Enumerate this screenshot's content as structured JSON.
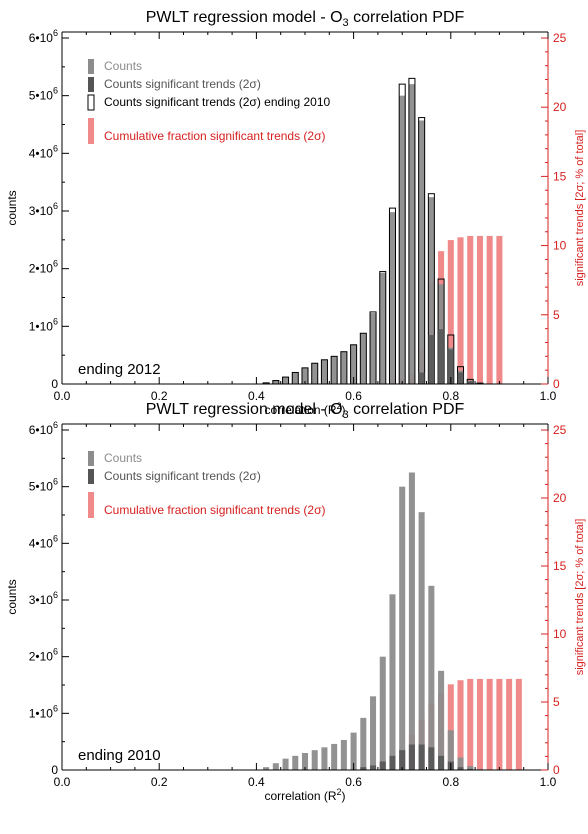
{
  "colors": {
    "counts": "#8c8c8c",
    "significant": "#555555",
    "cumulative": "#f08a8a",
    "right_axis": "#d62020",
    "ending_outline": "#000000"
  },
  "chart_data": [
    {
      "type": "bar",
      "title": "PWLT regression model - O",
      "title_sub": "3",
      "title_end": " correlation PDF",
      "xlabel": "correlation (R",
      "xlabel_sup": "2",
      "xlabel_end": ")",
      "ylabel": "counts",
      "y2label": "significant trends [2σ; % of total]",
      "annotation": "ending 2012",
      "xlim": [
        0.0,
        1.0
      ],
      "ylim": [
        0,
        6000000
      ],
      "y2lim": [
        0,
        25
      ],
      "xticks": [
        "0.0",
        "0.2",
        "0.4",
        "0.6",
        "0.8",
        "1.0"
      ],
      "yticks": [
        {
          "m": "0",
          "e": ""
        },
        {
          "m": "1•10",
          "e": "6"
        },
        {
          "m": "2•10",
          "e": "6"
        },
        {
          "m": "3•10",
          "e": "6"
        },
        {
          "m": "4•10",
          "e": "6"
        },
        {
          "m": "5•10",
          "e": "6"
        },
        {
          "m": "6•10",
          "e": "6"
        }
      ],
      "y2ticks": [
        "0",
        "5",
        "10",
        "15",
        "20",
        "25"
      ],
      "legend": [
        {
          "label": "Counts",
          "style": "counts"
        },
        {
          "label": "Counts significant trends (2σ)",
          "style": "significant"
        },
        {
          "label": "Counts significant trends (2σ) ending 2010",
          "style": "outline"
        },
        {
          "label": "Cumulative fraction significant trends (2σ)",
          "style": "cumulative"
        }
      ],
      "x": [
        0.4,
        0.42,
        0.44,
        0.46,
        0.48,
        0.5,
        0.52,
        0.54,
        0.56,
        0.58,
        0.6,
        0.62,
        0.64,
        0.66,
        0.68,
        0.7,
        0.72,
        0.74,
        0.76,
        0.78,
        0.8,
        0.82,
        0.84,
        0.86,
        0.88,
        0.9
      ],
      "series": [
        {
          "name": "Counts",
          "values": [
            0,
            20000,
            60000,
            120000,
            200000,
            280000,
            360000,
            420000,
            480000,
            560000,
            680000,
            880000,
            1230000,
            1930000,
            2980000,
            5000000,
            5200000,
            4570000,
            3240000,
            1730000,
            630000,
            230000,
            60000,
            10000,
            0,
            0
          ]
        },
        {
          "name": "Counts significant trends (2σ)",
          "values": [
            0,
            0,
            0,
            0,
            0,
            0,
            0,
            0,
            0,
            0,
            0,
            0,
            0,
            0,
            0,
            0,
            0,
            200000,
            850000,
            950000,
            600000,
            200000,
            50000,
            0,
            0,
            0
          ]
        },
        {
          "name": "Counts significant trends (2σ) ending 2010",
          "values": [
            0,
            20000,
            60000,
            120000,
            200000,
            280000,
            360000,
            420000,
            480000,
            560000,
            680000,
            880000,
            1250000,
            1950000,
            3050000,
            5200000,
            5300000,
            4620000,
            3300000,
            1820000,
            850000,
            300000,
            80000,
            15000,
            0,
            0
          ]
        },
        {
          "name": "Cumulative fraction significant trends (2σ)",
          "values": [
            0,
            0,
            0,
            0,
            0,
            0,
            0,
            0,
            0,
            0,
            0,
            0,
            0,
            0,
            0.3,
            0.4,
            0.7,
            2.5,
            7.4,
            9.6,
            10.4,
            10.6,
            10.7,
            10.7,
            10.7,
            10.7
          ]
        }
      ]
    },
    {
      "type": "bar",
      "title": "PWLT regression model - O",
      "title_sub": "3",
      "title_end": " correlation PDF",
      "xlabel": "correlation (R",
      "xlabel_sup": "2",
      "xlabel_end": ")",
      "ylabel": "counts",
      "y2label": "significant trends [2σ; % of total]",
      "annotation": "ending 2010",
      "xlim": [
        0.0,
        1.0
      ],
      "ylim": [
        0,
        6000000
      ],
      "y2lim": [
        0,
        25
      ],
      "xticks": [
        "0.0",
        "0.2",
        "0.4",
        "0.6",
        "0.8",
        "1.0"
      ],
      "yticks": [
        {
          "m": "0",
          "e": ""
        },
        {
          "m": "1•10",
          "e": "6"
        },
        {
          "m": "2•10",
          "e": "6"
        },
        {
          "m": "3•10",
          "e": "6"
        },
        {
          "m": "4•10",
          "e": "6"
        },
        {
          "m": "5•10",
          "e": "6"
        },
        {
          "m": "6•10",
          "e": "6"
        }
      ],
      "y2ticks": [
        "0",
        "5",
        "10",
        "15",
        "20",
        "25"
      ],
      "legend": [
        {
          "label": "Counts",
          "style": "counts"
        },
        {
          "label": "Counts significant trends (2σ)",
          "style": "significant"
        },
        {
          "label": "Cumulative fraction significant trends (2σ)",
          "style": "cumulative"
        }
      ],
      "x": [
        0.42,
        0.44,
        0.46,
        0.48,
        0.5,
        0.52,
        0.54,
        0.56,
        0.58,
        0.6,
        0.62,
        0.64,
        0.66,
        0.68,
        0.7,
        0.72,
        0.74,
        0.76,
        0.78,
        0.8,
        0.82,
        0.84,
        0.86,
        0.88,
        0.9,
        0.92,
        0.94
      ],
      "series": [
        {
          "name": "Counts",
          "values": [
            50000,
            120000,
            200000,
            250000,
            300000,
            350000,
            400000,
            460000,
            530000,
            660000,
            920000,
            1300000,
            2000000,
            3100000,
            5000000,
            5250000,
            4550000,
            3250000,
            1750000,
            700000,
            220000,
            70000,
            15000,
            0,
            0,
            0,
            0
          ]
        },
        {
          "name": "Counts significant trends (2σ)",
          "values": [
            0,
            0,
            0,
            0,
            0,
            0,
            0,
            0,
            0,
            0,
            50000,
            80000,
            150000,
            250000,
            350000,
            450000,
            450000,
            400000,
            250000,
            150000,
            50000,
            20000,
            0,
            0,
            0,
            0,
            0
          ]
        },
        {
          "name": "Cumulative fraction significant trends (2σ)",
          "values": [
            0,
            0,
            0,
            0,
            0,
            0,
            0,
            0,
            0,
            0.1,
            0.2,
            0.4,
            0.6,
            0.8,
            1.5,
            2.6,
            3.7,
            4.9,
            5.6,
            6.3,
            6.6,
            6.7,
            6.7,
            6.7,
            6.7,
            6.7,
            6.7
          ]
        }
      ]
    }
  ]
}
